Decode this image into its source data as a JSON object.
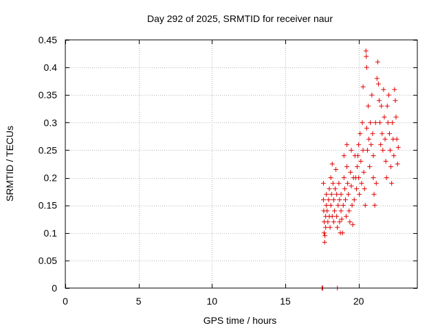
{
  "chart_data": {
    "type": "scatter",
    "title": "Day 292 of 2025, SRMTID for receiver naur",
    "xlabel": "GPS time / hours",
    "ylabel": "SRMTID / TECUs",
    "xlim": [
      0,
      24
    ],
    "ylim": [
      0,
      0.45
    ],
    "xticks": [
      0,
      5,
      10,
      15,
      20
    ],
    "xtick_labels": [
      "0",
      "5",
      "10",
      "15",
      "20"
    ],
    "yticks": [
      0,
      0.05,
      0.1,
      0.15,
      0.2,
      0.25,
      0.3,
      0.35,
      0.4,
      0.45
    ],
    "ytick_labels": [
      "0",
      "0.05",
      "0.1",
      "0.15",
      "0.2",
      "0.25",
      "0.3",
      "0.35",
      "0.4",
      "0.45"
    ],
    "grid": true,
    "legend": "none",
    "marker": "plus",
    "series": [
      {
        "name": "SRMTID",
        "color": "#e00000",
        "points": [
          [
            17.5,
            0.0
          ],
          [
            17.55,
            0.0
          ],
          [
            18.55,
            0.0
          ],
          [
            17.6,
            0.19
          ],
          [
            17.6,
            0.16
          ],
          [
            17.62,
            0.14
          ],
          [
            17.65,
            0.12
          ],
          [
            17.65,
            0.1
          ],
          [
            17.68,
            0.083
          ],
          [
            17.7,
            0.095
          ],
          [
            17.75,
            0.11
          ],
          [
            17.75,
            0.13
          ],
          [
            17.8,
            0.15
          ],
          [
            17.8,
            0.17
          ],
          [
            17.85,
            0.14
          ],
          [
            17.9,
            0.12
          ],
          [
            17.95,
            0.16
          ],
          [
            18.0,
            0.18
          ],
          [
            18.0,
            0.13
          ],
          [
            18.05,
            0.11
          ],
          [
            18.1,
            0.15
          ],
          [
            18.1,
            0.2
          ],
          [
            18.15,
            0.17
          ],
          [
            18.2,
            0.13
          ],
          [
            18.2,
            0.225
          ],
          [
            18.25,
            0.19
          ],
          [
            18.3,
            0.16
          ],
          [
            18.3,
            0.12
          ],
          [
            18.35,
            0.14
          ],
          [
            18.4,
            0.18
          ],
          [
            18.45,
            0.215
          ],
          [
            18.5,
            0.17
          ],
          [
            18.5,
            0.13
          ],
          [
            18.55,
            0.11
          ],
          [
            18.6,
            0.15
          ],
          [
            18.65,
            0.19
          ],
          [
            18.7,
            0.16
          ],
          [
            18.7,
            0.12
          ],
          [
            18.75,
            0.1
          ],
          [
            18.8,
            0.14
          ],
          [
            18.8,
            0.17
          ],
          [
            18.85,
            0.125
          ],
          [
            18.9,
            0.1
          ],
          [
            18.95,
            0.15
          ],
          [
            19.0,
            0.2
          ],
          [
            19.0,
            0.24
          ],
          [
            19.05,
            0.18
          ],
          [
            19.1,
            0.16
          ],
          [
            19.15,
            0.13
          ],
          [
            19.2,
            0.22
          ],
          [
            19.2,
            0.26
          ],
          [
            19.25,
            0.19
          ],
          [
            19.3,
            0.17
          ],
          [
            19.35,
            0.14
          ],
          [
            19.4,
            0.12
          ],
          [
            19.45,
            0.21
          ],
          [
            19.5,
            0.25
          ],
          [
            19.5,
            0.185
          ],
          [
            19.55,
            0.15
          ],
          [
            19.6,
            0.115
          ],
          [
            19.65,
            0.2
          ],
          [
            19.7,
            0.16
          ],
          [
            19.75,
            0.24
          ],
          [
            19.8,
            0.2
          ],
          [
            19.85,
            0.18
          ],
          [
            19.9,
            0.22
          ],
          [
            19.95,
            0.24
          ],
          [
            20.0,
            0.26
          ],
          [
            20.0,
            0.2
          ],
          [
            20.05,
            0.17
          ],
          [
            20.1,
            0.28
          ],
          [
            20.15,
            0.23
          ],
          [
            20.2,
            0.19
          ],
          [
            20.25,
            0.3
          ],
          [
            20.3,
            0.365
          ],
          [
            20.3,
            0.25
          ],
          [
            20.35,
            0.21
          ],
          [
            20.4,
            0.18
          ],
          [
            20.45,
            0.15
          ],
          [
            20.5,
            0.43
          ],
          [
            20.52,
            0.42
          ],
          [
            20.55,
            0.4
          ],
          [
            20.55,
            0.29
          ],
          [
            20.6,
            0.25
          ],
          [
            20.65,
            0.33
          ],
          [
            20.7,
            0.27
          ],
          [
            20.75,
            0.22
          ],
          [
            20.8,
            0.3
          ],
          [
            20.85,
            0.26
          ],
          [
            20.9,
            0.35
          ],
          [
            20.95,
            0.28
          ],
          [
            21.0,
            0.24
          ],
          [
            21.0,
            0.2
          ],
          [
            21.05,
            0.17
          ],
          [
            21.1,
            0.15
          ],
          [
            21.15,
            0.3
          ],
          [
            21.2,
            0.19
          ],
          [
            21.25,
            0.38
          ],
          [
            21.3,
            0.41
          ],
          [
            21.35,
            0.37
          ],
          [
            21.4,
            0.34
          ],
          [
            21.45,
            0.3
          ],
          [
            21.5,
            0.26
          ],
          [
            21.55,
            0.33
          ],
          [
            21.6,
            0.28
          ],
          [
            21.65,
            0.25
          ],
          [
            21.7,
            0.36
          ],
          [
            21.75,
            0.31
          ],
          [
            21.8,
            0.27
          ],
          [
            21.85,
            0.23
          ],
          [
            21.9,
            0.2
          ],
          [
            21.95,
            0.33
          ],
          [
            22.0,
            0.3
          ],
          [
            22.05,
            0.35
          ],
          [
            22.1,
            0.28
          ],
          [
            22.15,
            0.25
          ],
          [
            22.2,
            0.22
          ],
          [
            22.25,
            0.19
          ],
          [
            22.3,
            0.3
          ],
          [
            22.35,
            0.27
          ],
          [
            22.4,
            0.24
          ],
          [
            22.45,
            0.36
          ],
          [
            22.5,
            0.34
          ],
          [
            22.55,
            0.31
          ],
          [
            22.6,
            0.27
          ],
          [
            22.65,
            0.225
          ],
          [
            22.7,
            0.255
          ]
        ]
      }
    ]
  }
}
